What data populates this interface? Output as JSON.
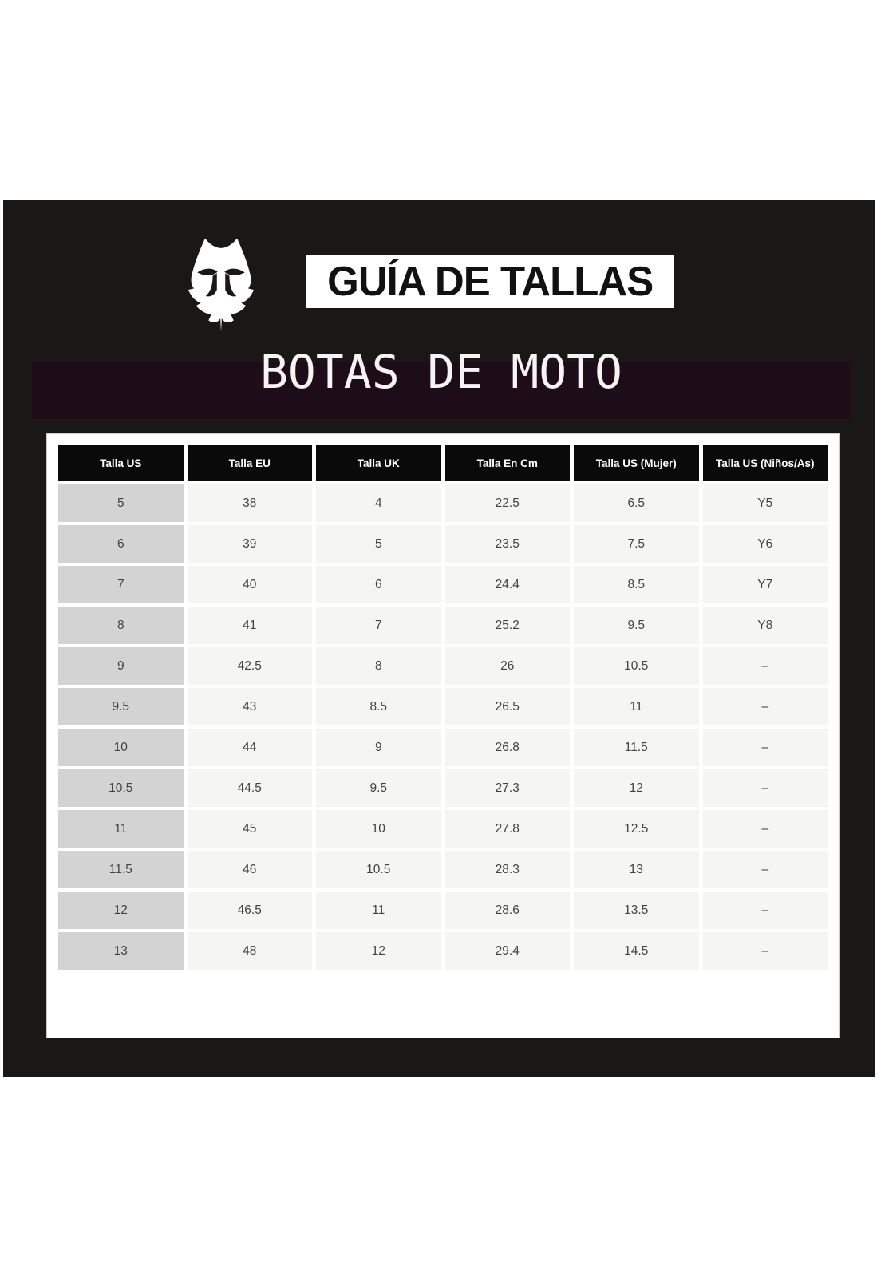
{
  "brand": {
    "logo_icon": "fox-head-icon"
  },
  "header": {
    "title": "GUÍA DE TALLAS",
    "subtitle": "BOTAS DE MOTO"
  },
  "colors": {
    "dark_background": "#1a1717",
    "subtitle_band": "#1f0c19",
    "table_header_bg": "#0a0a0a",
    "first_column_bg": "#d3d3d3",
    "cell_bg": "#f5f5f4",
    "card_bg": "#ffffff"
  },
  "table": {
    "headers": [
      "Talla US",
      "Talla EU",
      "Talla UK",
      "Talla En Cm",
      "Talla US (Mujer)",
      "Talla US (Niños/As)"
    ],
    "rows": [
      [
        "5",
        "38",
        "4",
        "22.5",
        "6.5",
        "Y5"
      ],
      [
        "6",
        "39",
        "5",
        "23.5",
        "7.5",
        "Y6"
      ],
      [
        "7",
        "40",
        "6",
        "24.4",
        "8.5",
        "Y7"
      ],
      [
        "8",
        "41",
        "7",
        "25.2",
        "9.5",
        "Y8"
      ],
      [
        "9",
        "42.5",
        "8",
        "26",
        "10.5",
        "–"
      ],
      [
        "9.5",
        "43",
        "8.5",
        "26.5",
        "11",
        "–"
      ],
      [
        "10",
        "44",
        "9",
        "26.8",
        "11.5",
        "–"
      ],
      [
        "10.5",
        "44.5",
        "9.5",
        "27.3",
        "12",
        "–"
      ],
      [
        "11",
        "45",
        "10",
        "27.8",
        "12.5",
        "–"
      ],
      [
        "11.5",
        "46",
        "10.5",
        "28.3",
        "13",
        "–"
      ],
      [
        "12",
        "46.5",
        "11",
        "28.6",
        "13.5",
        "–"
      ],
      [
        "13",
        "48",
        "12",
        "29.4",
        "14.5",
        "–"
      ]
    ]
  }
}
